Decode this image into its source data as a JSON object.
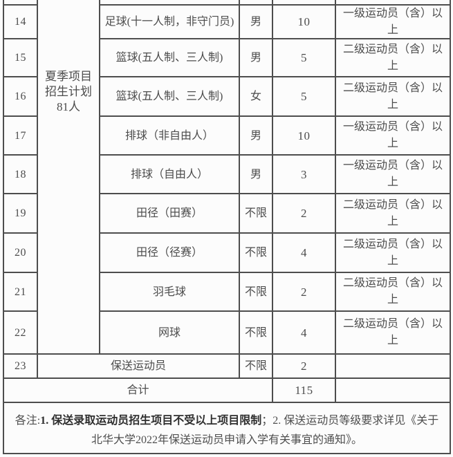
{
  "colors": {
    "border": "#4d4d4d",
    "text": "#4c4c4c",
    "note_bold_text": "#2e2e2e",
    "background": "#fcfcfc"
  },
  "table": {
    "category_label": "夏季项目\n招生计划\n81人",
    "rows": [
      {
        "no": "14",
        "sport": "足球(十一人制，非守门员)",
        "gender": "男",
        "quota": "10",
        "requirement": "一级运动员（含）以上"
      },
      {
        "no": "15",
        "sport": "篮球(五人制、三人制)",
        "gender": "男",
        "quota": "5",
        "requirement": "二级运动员（含）以上"
      },
      {
        "no": "16",
        "sport": "篮球(五人制、三人制)",
        "gender": "女",
        "quota": "5",
        "requirement": "二级运动员（含）以上"
      },
      {
        "no": "17",
        "sport": "排球（非自由人）",
        "gender": "男",
        "quota": "10",
        "requirement": "一级运动员（含）以上"
      },
      {
        "no": "18",
        "sport": "排球（自由人）",
        "gender": "男",
        "quota": "3",
        "requirement": "一级运动员（含）以上"
      },
      {
        "no": "19",
        "sport": "田径（田赛）",
        "gender": "不限",
        "quota": "2",
        "requirement": "二级运动员（含）以上"
      },
      {
        "no": "20",
        "sport": "田径（径赛）",
        "gender": "不限",
        "quota": "4",
        "requirement": "二级运动员（含）以上"
      },
      {
        "no": "21",
        "sport": "羽毛球",
        "gender": "不限",
        "quota": "2",
        "requirement": "二级运动员（含）以上"
      },
      {
        "no": "22",
        "sport": "网球",
        "gender": "不限",
        "quota": "4",
        "requirement": "二级运动员（含）以上"
      }
    ],
    "special_row": {
      "no": "23",
      "sport": "保送运动员",
      "gender": "不限",
      "quota": "2",
      "requirement": ""
    },
    "total_row": {
      "label": "合计",
      "quota": "115",
      "requirement": ""
    },
    "note": {
      "prefix": "各注:",
      "bold": "1. 保送录取运动员招生项目不受以上项目限制",
      "rest": "；2. 保送运动员等级要求详见《关于北华大学2022年保送运动员申请入学有关事宜的通知》。"
    }
  }
}
